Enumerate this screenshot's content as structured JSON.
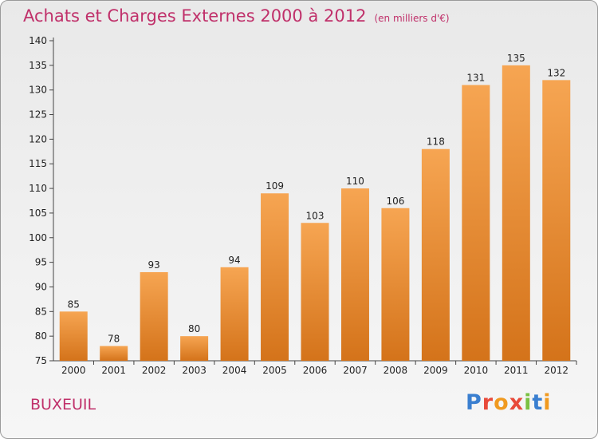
{
  "header": {
    "title": "Achats et Charges Externes 2000 à 2012",
    "subtitle": "(en milliers d'€)"
  },
  "footer": {
    "commune": "BUXEUIL",
    "logo_text": "Proxiti"
  },
  "colors": {
    "accent": "#c0306a",
    "bar_top": "#f6a552",
    "bar_bottom": "#d4731a",
    "logo_letters": [
      "#3a7fd0",
      "#e84a3a",
      "#f09a20",
      "#e84a3a",
      "#7bc143",
      "#3a7fd0",
      "#f09a20"
    ]
  },
  "chart_data": {
    "type": "bar",
    "categories": [
      "2000",
      "2001",
      "2002",
      "2003",
      "2004",
      "2005",
      "2006",
      "2007",
      "2008",
      "2009",
      "2010",
      "2011",
      "2012"
    ],
    "values": [
      85,
      78,
      93,
      80,
      94,
      109,
      103,
      110,
      106,
      118,
      131,
      135,
      132
    ],
    "ylim": [
      75,
      140
    ],
    "yticks": [
      75,
      80,
      85,
      90,
      95,
      100,
      105,
      110,
      115,
      120,
      125,
      130,
      135,
      140
    ],
    "grid": false,
    "data_labels": true
  }
}
